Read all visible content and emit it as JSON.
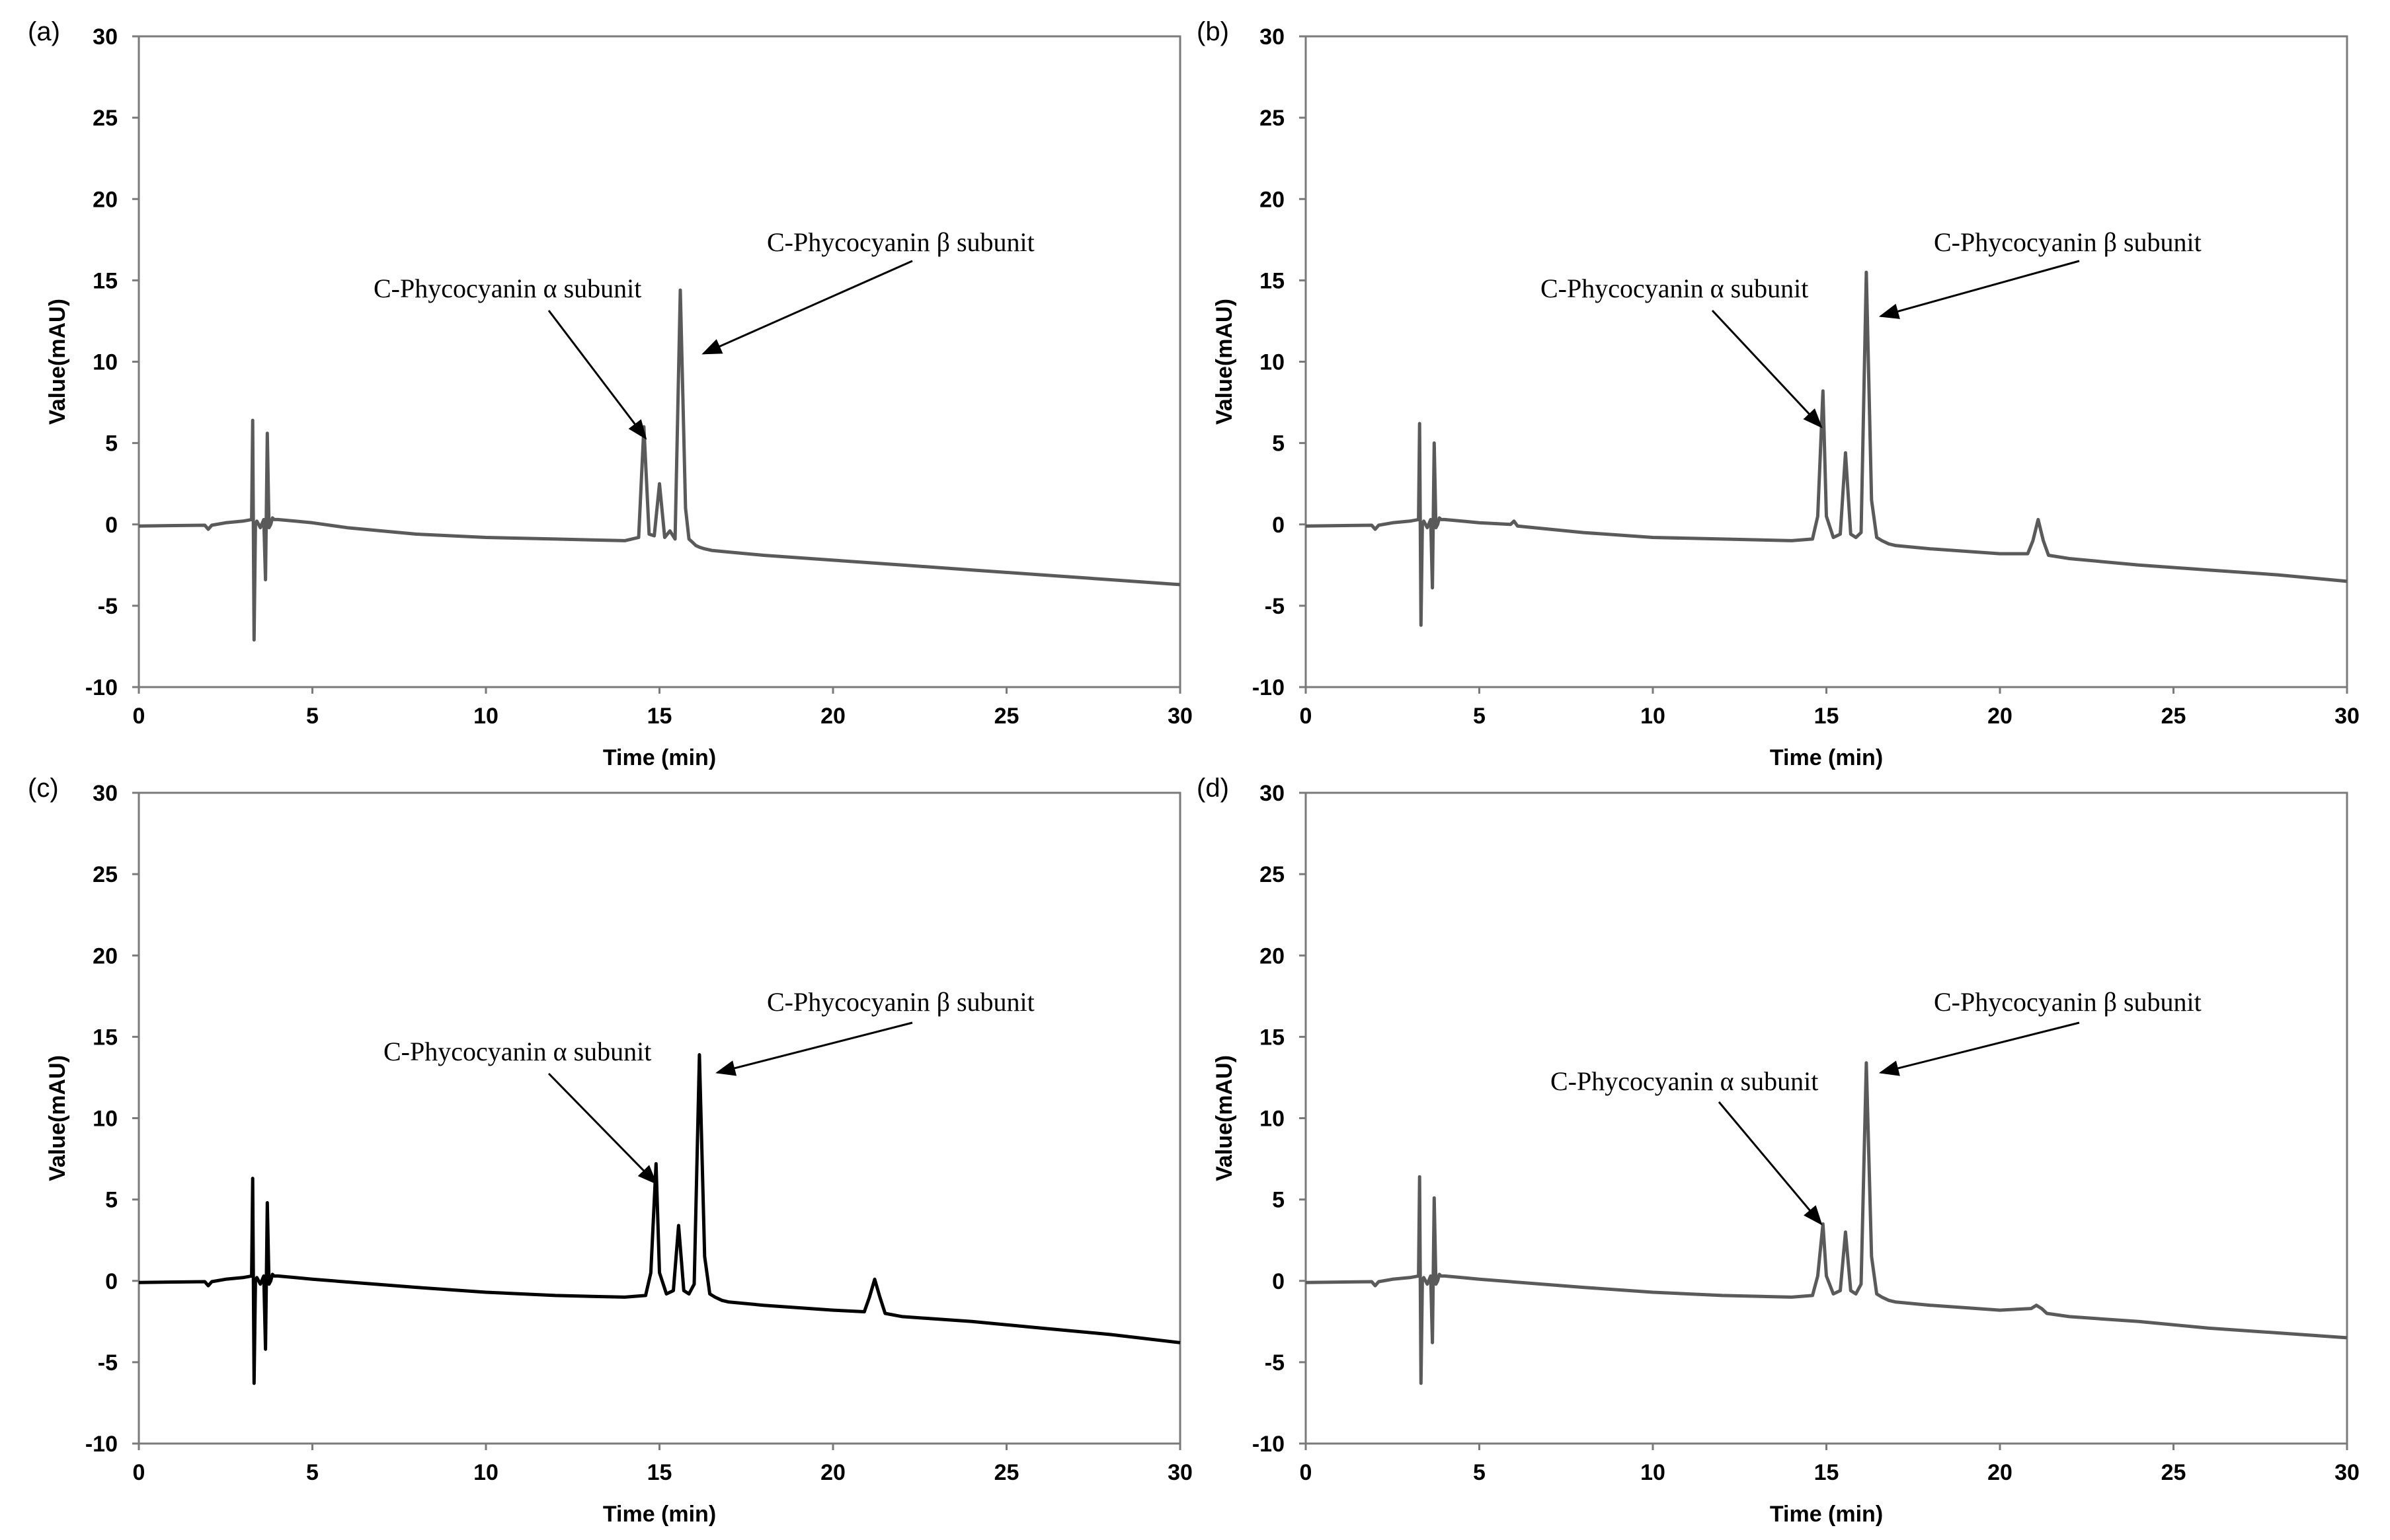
{
  "chart_data": [
    {
      "type": "line",
      "panel": "(a)",
      "xlabel": "Time (min)",
      "ylabel": "Value(mAU)",
      "xlim": [
        0,
        30
      ],
      "ylim": [
        -10,
        30
      ],
      "xticks": [
        0,
        5,
        10,
        15,
        20,
        25,
        30
      ],
      "yticks": [
        -10,
        -5,
        0,
        5,
        10,
        15,
        20,
        25,
        30
      ],
      "color": "#5a5a5a",
      "series": [
        {
          "name": "chromatogram",
          "x": [
            0,
            1.9,
            2.0,
            2.1,
            2.5,
            3.0,
            3.25,
            3.28,
            3.32,
            3.36,
            3.4,
            3.5,
            3.6,
            3.65,
            3.7,
            3.75,
            3.8,
            3.85,
            3.9,
            4.0,
            4.5,
            5,
            6,
            8,
            10,
            12,
            14,
            14.4,
            14.55,
            14.7,
            14.85,
            15.0,
            15.15,
            15.3,
            15.45,
            15.6,
            15.75,
            15.85,
            15.95,
            16.05,
            16.15,
            16.3,
            16.5,
            17,
            18,
            20,
            22,
            24,
            26,
            28,
            30
          ],
          "y": [
            -0.1,
            -0.05,
            -0.3,
            -0.05,
            0.1,
            0.2,
            0.3,
            6.4,
            -7.1,
            0.0,
            0.2,
            -0.2,
            0.3,
            -3.4,
            5.6,
            -0.2,
            0.0,
            0.4,
            0.3,
            0.3,
            0.2,
            0.1,
            -0.2,
            -0.6,
            -0.8,
            -0.9,
            -1.0,
            -0.8,
            6.0,
            -0.6,
            -0.7,
            2.5,
            -0.8,
            -0.4,
            -0.9,
            14.4,
            1.0,
            -0.9,
            -1.1,
            -1.3,
            -1.4,
            -1.5,
            -1.6,
            -1.7,
            -1.9,
            -2.2,
            -2.5,
            -2.8,
            -3.1,
            -3.4,
            -3.7
          ]
        }
      ],
      "annotations": [
        {
          "text": "C-Phycocyanin α subunit",
          "target": [
            14.6,
            5.3
          ]
        },
        {
          "text": "C-Phycocyanin β subunit",
          "target": [
            16.0,
            10.5
          ]
        }
      ]
    },
    {
      "type": "line",
      "panel": "(b)",
      "xlabel": "Time (min)",
      "ylabel": "Value(mAU)",
      "xlim": [
        0,
        30
      ],
      "ylim": [
        -10,
        30
      ],
      "xticks": [
        0,
        5,
        10,
        15,
        20,
        25,
        30
      ],
      "yticks": [
        -10,
        -5,
        0,
        5,
        10,
        15,
        20,
        25,
        30
      ],
      "color": "#5a5a5a",
      "series": [
        {
          "name": "chromatogram",
          "x": [
            0,
            1.9,
            2.0,
            2.1,
            2.5,
            3.0,
            3.25,
            3.28,
            3.32,
            3.36,
            3.4,
            3.5,
            3.6,
            3.65,
            3.7,
            3.75,
            3.8,
            3.85,
            3.9,
            4.0,
            4.5,
            5,
            5.9,
            6.0,
            6.1,
            8,
            10,
            12,
            14,
            14.6,
            14.75,
            14.9,
            15.0,
            15.2,
            15.4,
            15.55,
            15.7,
            15.85,
            16.0,
            16.15,
            16.3,
            16.45,
            16.6,
            16.8,
            17,
            18,
            20,
            20.8,
            20.95,
            21.1,
            21.25,
            21.4,
            22,
            24,
            26,
            28,
            30
          ],
          "y": [
            -0.1,
            -0.05,
            -0.3,
            -0.05,
            0.1,
            0.2,
            0.3,
            6.2,
            -6.2,
            0.0,
            0.2,
            -0.2,
            0.3,
            -3.9,
            5.0,
            -0.2,
            0.0,
            0.4,
            0.3,
            0.3,
            0.2,
            0.1,
            0.0,
            0.2,
            -0.1,
            -0.5,
            -0.8,
            -0.9,
            -1.0,
            -0.9,
            0.5,
            8.2,
            0.5,
            -0.8,
            -0.6,
            4.4,
            -0.6,
            -0.8,
            -0.5,
            15.5,
            1.5,
            -0.8,
            -1.0,
            -1.2,
            -1.3,
            -1.5,
            -1.8,
            -1.8,
            -1.0,
            0.3,
            -1.0,
            -1.9,
            -2.1,
            -2.5,
            -2.8,
            -3.1,
            -3.5
          ]
        }
      ],
      "annotations": [
        {
          "text": "C-Phycocyanin α subunit",
          "target": [
            14.85,
            6.0
          ]
        },
        {
          "text": "C-Phycocyanin β subunit",
          "target": [
            16.3,
            12.8
          ]
        }
      ]
    },
    {
      "type": "line",
      "panel": "(c)",
      "xlabel": "Time (min)",
      "ylabel": "Value(mAU)",
      "xlim": [
        0,
        30
      ],
      "ylim": [
        -10,
        30
      ],
      "xticks": [
        0,
        5,
        10,
        15,
        20,
        25,
        30
      ],
      "yticks": [
        -10,
        -5,
        0,
        5,
        10,
        15,
        20,
        25,
        30
      ],
      "color": "#000000",
      "series": [
        {
          "name": "chromatogram",
          "x": [
            0,
            1.9,
            2.0,
            2.1,
            2.5,
            3.0,
            3.25,
            3.28,
            3.32,
            3.36,
            3.4,
            3.5,
            3.6,
            3.65,
            3.7,
            3.75,
            3.8,
            3.85,
            3.9,
            4.0,
            4.5,
            5,
            8,
            10,
            12,
            14,
            14.6,
            14.75,
            14.9,
            15.0,
            15.2,
            15.4,
            15.55,
            15.7,
            15.85,
            16.0,
            16.15,
            16.3,
            16.45,
            16.6,
            16.8,
            17,
            18,
            20,
            20.9,
            21.05,
            21.2,
            21.35,
            21.5,
            22,
            24,
            26,
            28,
            30
          ],
          "y": [
            -0.1,
            -0.05,
            -0.3,
            -0.05,
            0.1,
            0.2,
            0.3,
            6.3,
            -6.3,
            0.0,
            0.2,
            -0.2,
            0.3,
            -4.2,
            4.8,
            -0.2,
            0.0,
            0.4,
            0.3,
            0.3,
            0.2,
            0.1,
            -0.4,
            -0.7,
            -0.9,
            -1.0,
            -0.9,
            0.5,
            7.2,
            0.5,
            -0.8,
            -0.6,
            3.4,
            -0.6,
            -0.8,
            -0.2,
            13.9,
            1.5,
            -0.8,
            -1.0,
            -1.2,
            -1.3,
            -1.5,
            -1.8,
            -1.9,
            -1.0,
            0.1,
            -1.0,
            -2.0,
            -2.2,
            -2.5,
            -2.9,
            -3.3,
            -3.8
          ]
        }
      ],
      "annotations": [
        {
          "text": "C-Phycocyanin α subunit",
          "target": [
            14.9,
            6.0
          ]
        },
        {
          "text": "C-Phycocyanin β subunit",
          "target": [
            16.4,
            12.8
          ]
        }
      ]
    },
    {
      "type": "line",
      "panel": "(d)",
      "xlabel": "Time (min)",
      "ylabel": "Value(mAU)",
      "xlim": [
        0,
        30
      ],
      "ylim": [
        -10,
        30
      ],
      "xticks": [
        0,
        5,
        10,
        15,
        20,
        25,
        30
      ],
      "yticks": [
        -10,
        -5,
        0,
        5,
        10,
        15,
        20,
        25,
        30
      ],
      "color": "#5a5a5a",
      "series": [
        {
          "name": "chromatogram",
          "x": [
            0,
            1.9,
            2.0,
            2.1,
            2.5,
            3.0,
            3.25,
            3.28,
            3.32,
            3.36,
            3.4,
            3.5,
            3.6,
            3.65,
            3.7,
            3.75,
            3.8,
            3.85,
            3.9,
            4.0,
            4.5,
            5,
            8,
            10,
            12,
            14,
            14.6,
            14.75,
            14.9,
            15.0,
            15.2,
            15.4,
            15.55,
            15.7,
            15.85,
            16.0,
            16.15,
            16.3,
            16.45,
            16.6,
            16.8,
            17,
            18,
            20,
            20.9,
            21.05,
            21.2,
            21.35,
            22,
            24,
            26,
            28,
            30
          ],
          "y": [
            -0.1,
            -0.05,
            -0.3,
            -0.05,
            0.1,
            0.2,
            0.3,
            6.4,
            -6.3,
            0.0,
            0.2,
            -0.2,
            0.3,
            -3.8,
            5.1,
            -0.2,
            0.0,
            0.4,
            0.3,
            0.3,
            0.2,
            0.1,
            -0.4,
            -0.7,
            -0.9,
            -1.0,
            -0.9,
            0.3,
            3.5,
            0.3,
            -0.8,
            -0.6,
            3.0,
            -0.6,
            -0.8,
            -0.2,
            13.4,
            1.5,
            -0.8,
            -1.0,
            -1.2,
            -1.3,
            -1.5,
            -1.8,
            -1.7,
            -1.5,
            -1.7,
            -2.0,
            -2.2,
            -2.5,
            -2.9,
            -3.2,
            -3.5
          ]
        }
      ],
      "annotations": [
        {
          "text": "C-Phycocyanin α subunit",
          "target": [
            14.85,
            3.5
          ]
        },
        {
          "text": "C-Phycocyanin β subunit",
          "target": [
            16.3,
            12.8
          ]
        }
      ]
    }
  ]
}
